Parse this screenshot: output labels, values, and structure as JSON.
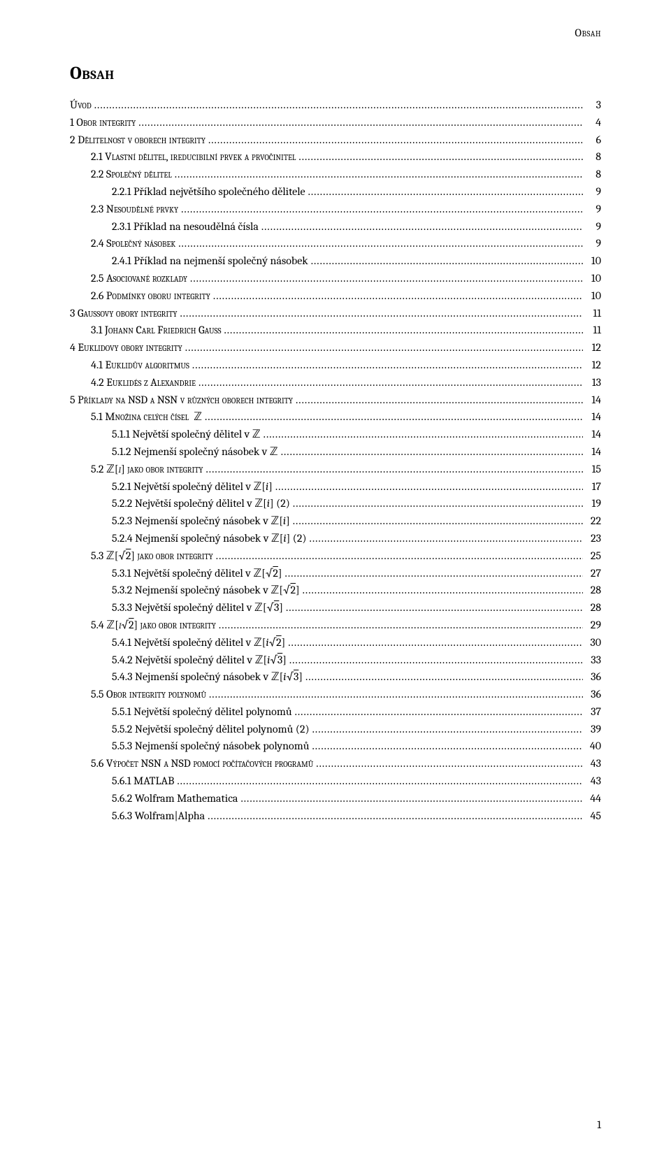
{
  "header": "Obsah",
  "main_title": "Obsah",
  "footer_page": "1",
  "entries": [
    {
      "indent": 0,
      "sc": true,
      "label_html": "Úvod",
      "page": "3"
    },
    {
      "indent": 0,
      "sc": true,
      "label_html": "1   Obor integrity",
      "page": "4"
    },
    {
      "indent": 0,
      "sc": true,
      "label_html": "2   Dělitelnost v oborech integrity",
      "page": "6"
    },
    {
      "indent": 1,
      "sc": true,
      "label_html": "2.1   Vlastní dělitel, ireducibilní prvek a prvočinitel",
      "page": "8"
    },
    {
      "indent": 1,
      "sc": true,
      "label_html": "2.2   Společný dělitel",
      "page": "8"
    },
    {
      "indent": 2,
      "sc": false,
      "label_html": "2.2.1   Příklad největšího společného dělitele",
      "page": "9"
    },
    {
      "indent": 1,
      "sc": true,
      "label_html": "2.3   Nesoudělné prvky",
      "page": "9"
    },
    {
      "indent": 2,
      "sc": false,
      "label_html": "2.3.1   Příklad na nesoudělná čísla",
      "page": "9"
    },
    {
      "indent": 1,
      "sc": true,
      "label_html": "2.4   Společný násobek",
      "page": "9"
    },
    {
      "indent": 2,
      "sc": false,
      "label_html": "2.4.1   Příklad na nejmenší společný násobek",
      "page": "10"
    },
    {
      "indent": 1,
      "sc": true,
      "label_html": "2.5   Asociované rozklady",
      "page": "10"
    },
    {
      "indent": 1,
      "sc": true,
      "label_html": "2.6   Podmínky oboru integrity",
      "page": "10"
    },
    {
      "indent": 0,
      "sc": true,
      "label_html": "3   Gaussovy obory integrity",
      "page": "11"
    },
    {
      "indent": 1,
      "sc": true,
      "label_html": "3.1   Johann Carl Friedrich Gauss",
      "page": "11"
    },
    {
      "indent": 0,
      "sc": true,
      "label_html": "4   Euklidovy obory integrity",
      "page": "12"
    },
    {
      "indent": 1,
      "sc": true,
      "label_html": "4.1   Euklidův algoritmus",
      "page": "12"
    },
    {
      "indent": 1,
      "sc": true,
      "label_html": "4.2   Euklidés z Alexandrie",
      "page": "13"
    },
    {
      "indent": 0,
      "sc": true,
      "label_html": "5   Příklady na NSD a NSN v různých oborech integrity",
      "page": "14"
    },
    {
      "indent": 1,
      "sc": true,
      "label_html": "5.1   Množina celých čísel &nbsp;<span class='dstrok'>&#8484;</span>",
      "page": "14"
    },
    {
      "indent": 2,
      "sc": false,
      "label_html": "5.1.1   Největší společný dělitel v  <span class='dstrok'>&#8484;</span>",
      "page": "14"
    },
    {
      "indent": 2,
      "sc": false,
      "label_html": "5.1.2   Nejmenší společný násobek v  <span class='dstrok'>&#8484;</span>",
      "page": "14"
    },
    {
      "indent": 1,
      "sc": true,
      "label_html": "5.2   <span class='dstrok'>&#8484;</span>[<i>i</i>]  jako obor integrity",
      "page": "15"
    },
    {
      "indent": 2,
      "sc": false,
      "label_html": "5.2.1   Největší společný dělitel v  <span class='dstrok'>&#8484;</span>[<i>i</i>]",
      "page": "17"
    },
    {
      "indent": 2,
      "sc": false,
      "label_html": "5.2.2   Největší společný dělitel v  <span class='dstrok'>&#8484;</span>[<i>i</i>] (2)",
      "page": "19"
    },
    {
      "indent": 2,
      "sc": false,
      "label_html": "5.2.3   Nejmenší společný násobek v  <span class='dstrok'>&#8484;</span>[<i>i</i>]",
      "page": "22"
    },
    {
      "indent": 2,
      "sc": false,
      "label_html": "5.2.4   Nejmenší společný násobek v  <span class='dstrok'>&#8484;</span>[<i>i</i>] (2)",
      "page": "23"
    },
    {
      "indent": 1,
      "sc": true,
      "label_html": "5.3   <span class='dstrok'>&#8484;</span>[&radic;<span style='text-decoration:overline'>2</span>]  jako obor integrity",
      "page": "25"
    },
    {
      "indent": 2,
      "sc": false,
      "label_html": "5.3.1   Největší společný dělitel v  <span class='dstrok'>&#8484;</span>[&radic;<span style='text-decoration:overline'>2</span>]",
      "page": "27"
    },
    {
      "indent": 2,
      "sc": false,
      "label_html": "5.3.2   Nejmenší společný násobek v  <span class='dstrok'>&#8484;</span>[&radic;<span style='text-decoration:overline'>2</span>]",
      "page": "28"
    },
    {
      "indent": 2,
      "sc": false,
      "label_html": "5.3.3   Největší společný dělitel v  <span class='dstrok'>&#8484;</span>[&radic;<span style='text-decoration:overline'>3</span>]",
      "page": "28"
    },
    {
      "indent": 1,
      "sc": true,
      "label_html": "5.4   <span class='dstrok'>&#8484;</span>[<i>i</i>&radic;<span style='text-decoration:overline'>2</span>]  jako obor integrity",
      "page": "29"
    },
    {
      "indent": 2,
      "sc": false,
      "label_html": "5.4.1   Největší společný dělitel v  <span class='dstrok'>&#8484;</span>[<i>i</i>&radic;<span style='text-decoration:overline'>2</span>]",
      "page": "30"
    },
    {
      "indent": 2,
      "sc": false,
      "label_html": "5.4.2   Největší společný dělitel v  <span class='dstrok'>&#8484;</span>[<i>i</i>&radic;<span style='text-decoration:overline'>3</span>]",
      "page": "33"
    },
    {
      "indent": 2,
      "sc": false,
      "label_html": "5.4.3   Nejmenší společný násobek v  <span class='dstrok'>&#8484;</span>[<i>i</i>&radic;<span style='text-decoration:overline'>3</span>]",
      "page": "36"
    },
    {
      "indent": 1,
      "sc": true,
      "label_html": "5.5   Obor integrity polynomů",
      "page": "36"
    },
    {
      "indent": 2,
      "sc": false,
      "label_html": "5.5.1   Největší společný dělitel polynomů",
      "page": "37"
    },
    {
      "indent": 2,
      "sc": false,
      "label_html": "5.5.2   Největší společný dělitel polynomů (2)",
      "page": "39"
    },
    {
      "indent": 2,
      "sc": false,
      "label_html": "5.5.3   Nejmenší společný násobek polynomů",
      "page": "40"
    },
    {
      "indent": 1,
      "sc": true,
      "label_html": "5.6   Výpočet NSN a NSD pomocí počítačových programů",
      "page": "43"
    },
    {
      "indent": 2,
      "sc": false,
      "label_html": "5.6.1   MATLAB",
      "page": "43"
    },
    {
      "indent": 2,
      "sc": false,
      "label_html": "5.6.2   Wolfram Mathematica",
      "page": "44"
    },
    {
      "indent": 2,
      "sc": false,
      "label_html": "5.6.3   Wolfram|Alpha",
      "page": "45"
    }
  ]
}
